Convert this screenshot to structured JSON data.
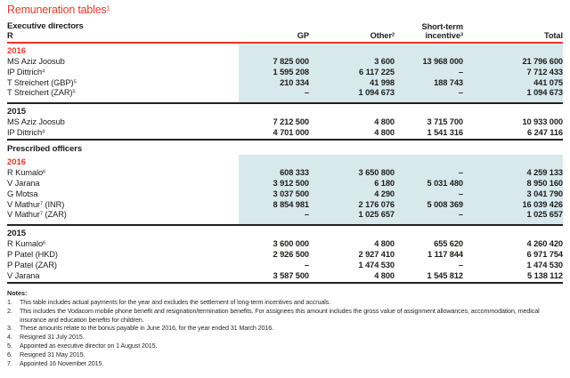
{
  "title": {
    "text": "Remuneration tables",
    "sup": "1"
  },
  "colors": {
    "accent_red": "#e13a2c",
    "highlight_blue": "#d8e9ee",
    "rule_dark": "#232221"
  },
  "table": {
    "row_label_header": "R",
    "col_headers": {
      "gp": {
        "label": "GP"
      },
      "other": {
        "label": "Other",
        "sup": "2"
      },
      "sti_top": "Short-term",
      "sti": {
        "label": "incentive",
        "sup": "3"
      },
      "total": {
        "label": "Total"
      }
    },
    "sections": [
      {
        "heading": "Executive directors",
        "groups": [
          {
            "year": "2016",
            "year_color": "red",
            "highlight": true,
            "rows": [
              {
                "name_pre": "MS Aziz Joosub",
                "name_sup": "",
                "name_post": "",
                "gp": "7 825 000",
                "other": "3 600",
                "sti": "13 968 000",
                "total": "21 796 600"
              },
              {
                "name_pre": "IP Dittrich",
                "name_sup": "4",
                "name_post": "",
                "gp": "1 595 208",
                "other": "6 117 225",
                "sti": "–",
                "total": "7 712 433"
              },
              {
                "name_pre": "T Streichert (GBP)",
                "name_sup": "5",
                "name_post": "",
                "gp": "210 334",
                "other": "41 998",
                "sti": "188 743",
                "total": "441 075"
              },
              {
                "name_pre": "T Streichert (ZAR)",
                "name_sup": "5",
                "name_post": "",
                "gp": "–",
                "other": "1 094 673",
                "sti": "–",
                "total": "1 094 673"
              }
            ]
          },
          {
            "year": "2015",
            "year_color": "dark",
            "highlight": false,
            "rows": [
              {
                "name_pre": "MS Aziz Joosub",
                "name_sup": "",
                "name_post": "",
                "gp": "7 212 500",
                "other": "4 800",
                "sti": "3 715 700",
                "total": "10 933 000"
              },
              {
                "name_pre": "IP Dittrich",
                "name_sup": "4",
                "name_post": "",
                "gp": "4 701 000",
                "other": "4 800",
                "sti": "1 541 316",
                "total": "6 247 116"
              }
            ]
          }
        ]
      },
      {
        "heading": "Prescribed officers",
        "groups": [
          {
            "year": "2016",
            "year_color": "red",
            "highlight": true,
            "rows": [
              {
                "name_pre": "R Kumalo",
                "name_sup": "6",
                "name_post": "",
                "gp": "608 333",
                "other": "3 650 800",
                "sti": "–",
                "total": "4 259 133"
              },
              {
                "name_pre": "V Jarana",
                "name_sup": "",
                "name_post": "",
                "gp": "3 912 500",
                "other": "6 180",
                "sti": "5 031 480",
                "total": "8 950 160"
              },
              {
                "name_pre": "G Motsa",
                "name_sup": "",
                "name_post": "",
                "gp": "3 037 500",
                "other": "4 290",
                "sti": "–",
                "total": "3 041 790"
              },
              {
                "name_pre": "V Mathur",
                "name_sup": "7",
                "name_post": " (INR)",
                "gp": "8 854 981",
                "other": "2 176 076",
                "sti": "5 008 369",
                "total": "16 039 426"
              },
              {
                "name_pre": "V Mathur",
                "name_sup": "7",
                "name_post": " (ZAR)",
                "gp": "–",
                "other": "1 025 657",
                "sti": "–",
                "total": "1 025 657"
              }
            ]
          },
          {
            "year": "2015",
            "year_color": "dark",
            "highlight": false,
            "rows": [
              {
                "name_pre": "R Kumalo",
                "name_sup": "6",
                "name_post": "",
                "gp": "3 600 000",
                "other": "4 800",
                "sti": "655 620",
                "total": "4 260 420"
              },
              {
                "name_pre": "P Patel (HKD)",
                "name_sup": "",
                "name_post": "",
                "gp": "2 926 500",
                "other": "2 927 410",
                "sti": "1 117 844",
                "total": "6 971 754"
              },
              {
                "name_pre": "P Patel (ZAR)",
                "name_sup": "",
                "name_post": "",
                "gp": "–",
                "other": "1 474 530",
                "sti": "–",
                "total": "1 474 530"
              },
              {
                "name_pre": "V Jarana",
                "name_sup": "",
                "name_post": "",
                "gp": "3 587 500",
                "other": "4 800",
                "sti": "1 545 812",
                "total": "5 138 112"
              }
            ]
          }
        ]
      }
    ]
  },
  "notes": {
    "heading": "Notes:",
    "items": [
      {
        "num": "1.",
        "text": "This table includes actual payments for the year and excludes the settlement of long-term incentives and accruals."
      },
      {
        "num": "2.",
        "text": "This includes the Vodacom mobile phone benefit and resignation/termination benefits. For assignees this amount includes the gross value of assignment allowances, accommodation, medical insurance and education benefits for children."
      },
      {
        "num": "3.",
        "text": "These amounts relate to the bonus payable in June 2016, for the year ended 31 March 2016."
      },
      {
        "num": "4.",
        "text": "Resigned 31 July 2015."
      },
      {
        "num": "5.",
        "text": "Appointed as executive director on 1 August 2015."
      },
      {
        "num": "6.",
        "text": "Resigned 31 May 2015."
      },
      {
        "num": "7.",
        "text": "Appointed 16 November 2015."
      }
    ]
  }
}
